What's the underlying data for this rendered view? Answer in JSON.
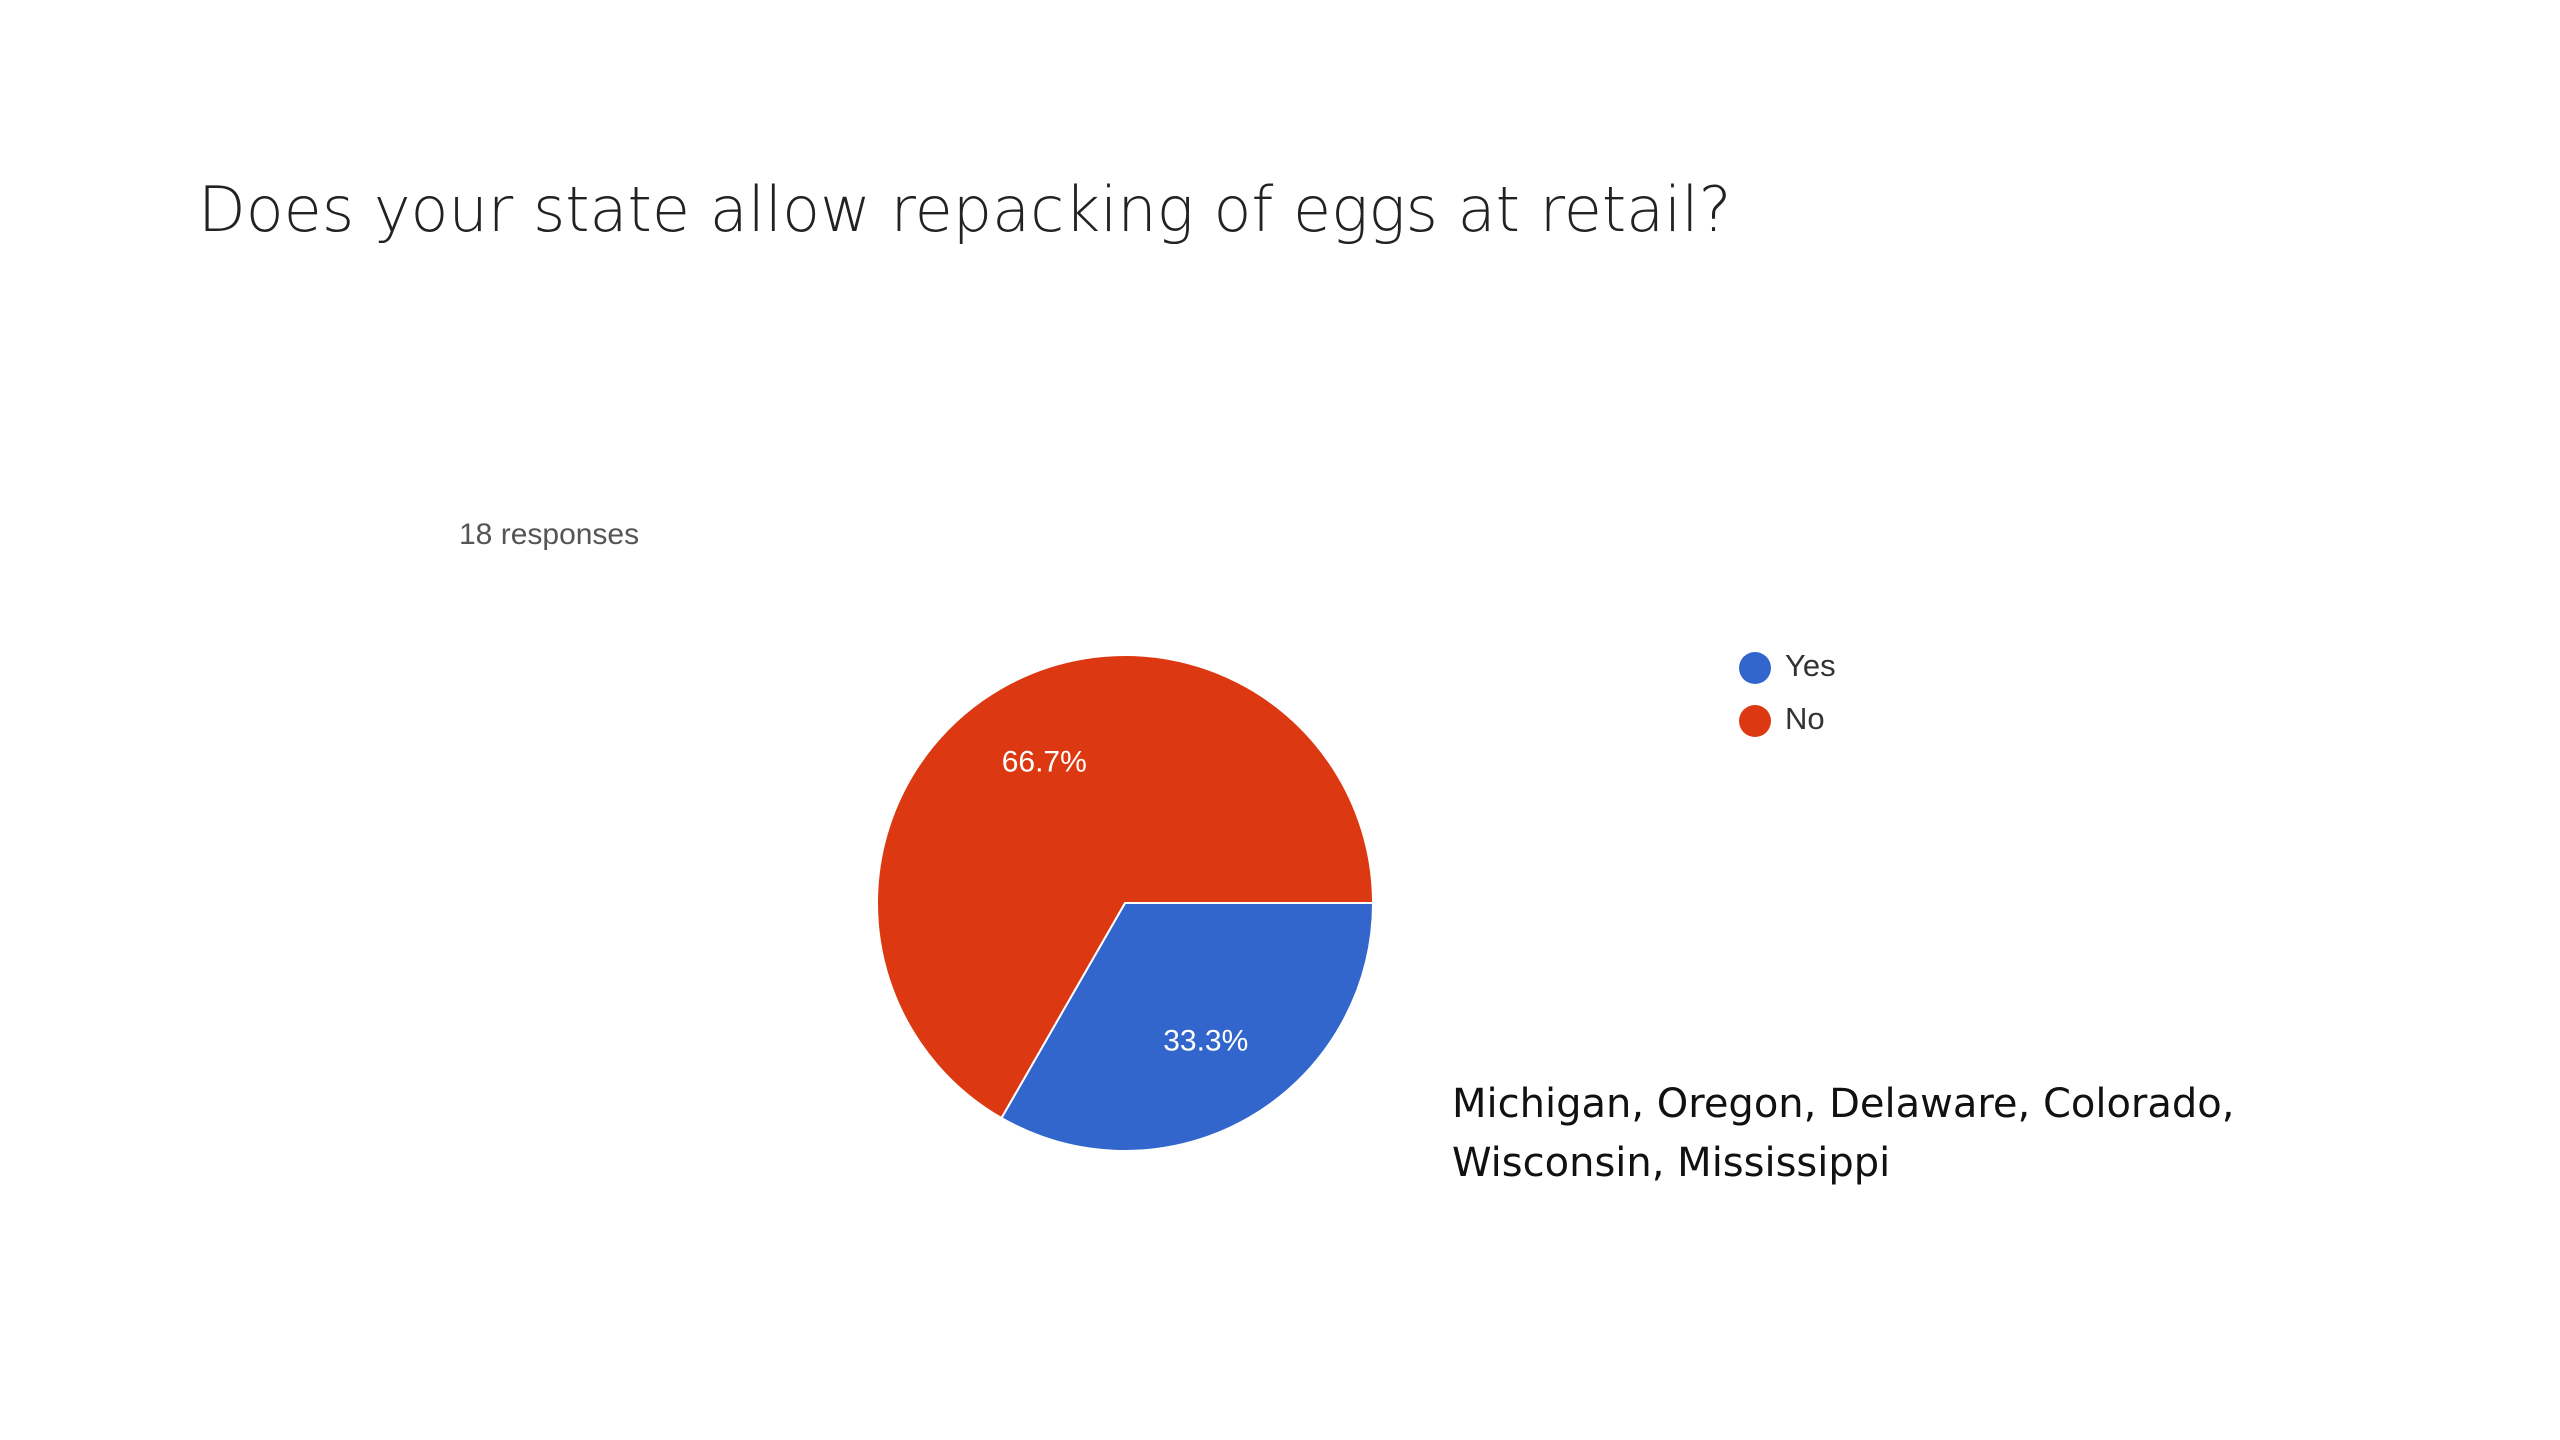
{
  "chart_data": {
    "type": "pie",
    "title": "Does your state allow repacking of eggs at retail?",
    "subtitle": "18 responses",
    "categories": [
      "Yes",
      "No"
    ],
    "values": [
      33.3,
      66.7
    ],
    "value_labels": [
      "33.3%",
      "66.7%"
    ],
    "colors": [
      "#3366cc",
      "#dc3912"
    ],
    "legend": "right",
    "annotation": "Michigan, Oregon, Delaware, Colorado, Wisconsin, Mississippi"
  }
}
